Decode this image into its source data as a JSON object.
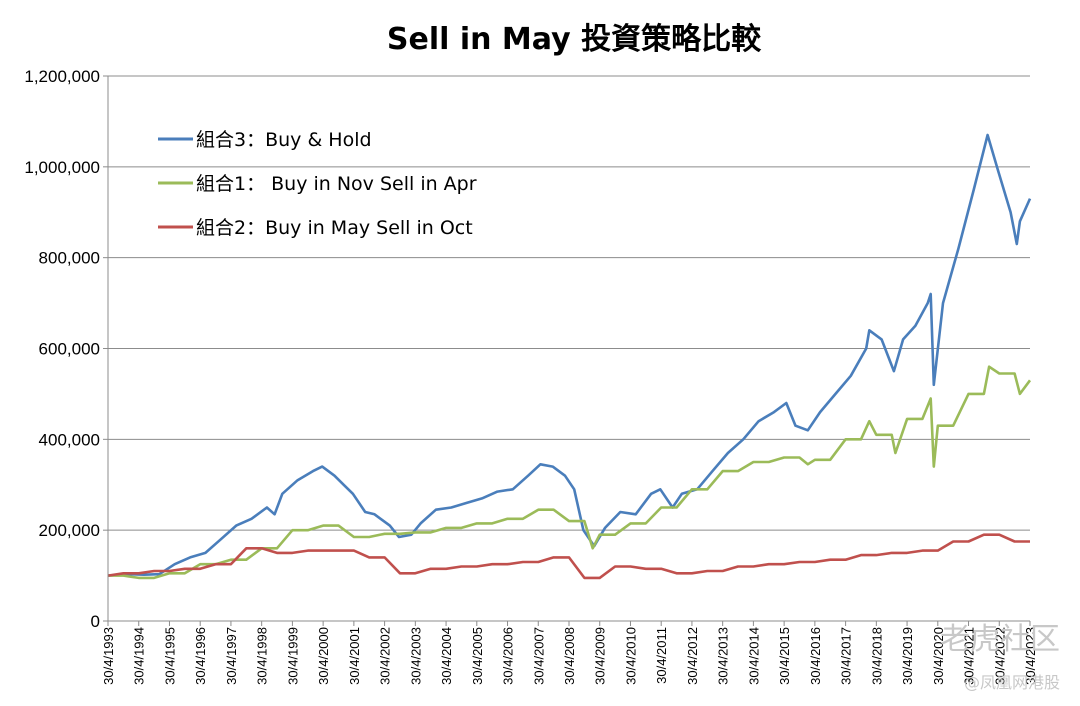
{
  "chart_data": {
    "type": "line",
    "title": "Sell in May 投資策略比較",
    "xlabel": "",
    "ylabel": "",
    "ylim": [
      0,
      1200000
    ],
    "yticks": [
      "0",
      "200,000",
      "400,000",
      "600,000",
      "800,000",
      "1,000,000",
      "1,200,000"
    ],
    "xticks": [
      "30/4/1993",
      "30/4/1994",
      "30/4/1995",
      "30/4/1996",
      "30/4/1997",
      "30/4/1998",
      "30/4/1999",
      "30/4/2000",
      "30/4/2001",
      "30/4/2002",
      "30/4/2003",
      "30/4/2004",
      "30/4/2005",
      "30/4/2006",
      "30/4/2007",
      "30/4/2008",
      "30/4/2009",
      "30/4/2010",
      "30/4/2011",
      "30/4/2012",
      "30/4/2013",
      "30/4/2014",
      "30/4/2015",
      "30/4/2016",
      "30/4/2017",
      "30/4/2018",
      "30/4/2019",
      "30/4/2020",
      "30/4/2021",
      "30/4/2022",
      "30/4/2023"
    ],
    "x_range": [
      1993.33,
      2023.33
    ],
    "grid": true,
    "legend_position": "top-left",
    "series": [
      {
        "name": "組合3：Buy & Hold",
        "color": "#4a7ebb",
        "points": [
          [
            1993.33,
            100000
          ],
          [
            1994.0,
            103000
          ],
          [
            1994.5,
            102000
          ],
          [
            1995.0,
            103000
          ],
          [
            1995.5,
            125000
          ],
          [
            1996.0,
            140000
          ],
          [
            1996.5,
            150000
          ],
          [
            1997.0,
            180000
          ],
          [
            1997.5,
            210000
          ],
          [
            1998.0,
            225000
          ],
          [
            1998.5,
            250000
          ],
          [
            1998.75,
            235000
          ],
          [
            1999.0,
            280000
          ],
          [
            1999.5,
            310000
          ],
          [
            2000.0,
            330000
          ],
          [
            2000.3,
            340000
          ],
          [
            2000.7,
            320000
          ],
          [
            2001.0,
            300000
          ],
          [
            2001.3,
            280000
          ],
          [
            2001.7,
            240000
          ],
          [
            2002.0,
            235000
          ],
          [
            2002.5,
            210000
          ],
          [
            2002.8,
            185000
          ],
          [
            2003.2,
            190000
          ],
          [
            2003.5,
            215000
          ],
          [
            2004.0,
            245000
          ],
          [
            2004.5,
            250000
          ],
          [
            2005.0,
            260000
          ],
          [
            2005.5,
            270000
          ],
          [
            2006.0,
            285000
          ],
          [
            2006.5,
            290000
          ],
          [
            2007.0,
            320000
          ],
          [
            2007.4,
            345000
          ],
          [
            2007.8,
            340000
          ],
          [
            2008.2,
            320000
          ],
          [
            2008.5,
            290000
          ],
          [
            2008.8,
            200000
          ],
          [
            2009.15,
            165000
          ],
          [
            2009.5,
            205000
          ],
          [
            2010.0,
            240000
          ],
          [
            2010.5,
            235000
          ],
          [
            2011.0,
            280000
          ],
          [
            2011.3,
            290000
          ],
          [
            2011.7,
            250000
          ],
          [
            2012.0,
            280000
          ],
          [
            2012.5,
            290000
          ],
          [
            2013.0,
            330000
          ],
          [
            2013.5,
            370000
          ],
          [
            2014.0,
            400000
          ],
          [
            2014.5,
            440000
          ],
          [
            2015.0,
            460000
          ],
          [
            2015.4,
            480000
          ],
          [
            2015.7,
            430000
          ],
          [
            2016.1,
            420000
          ],
          [
            2016.5,
            460000
          ],
          [
            2017.0,
            500000
          ],
          [
            2017.5,
            540000
          ],
          [
            2018.0,
            600000
          ],
          [
            2018.1,
            640000
          ],
          [
            2018.5,
            620000
          ],
          [
            2018.9,
            550000
          ],
          [
            2019.2,
            620000
          ],
          [
            2019.6,
            650000
          ],
          [
            2020.0,
            700000
          ],
          [
            2020.1,
            720000
          ],
          [
            2020.2,
            520000
          ],
          [
            2020.5,
            700000
          ],
          [
            2021.0,
            820000
          ],
          [
            2021.5,
            950000
          ],
          [
            2021.95,
            1070000
          ],
          [
            2022.3,
            990000
          ],
          [
            2022.7,
            900000
          ],
          [
            2022.9,
            830000
          ],
          [
            2023.0,
            880000
          ],
          [
            2023.33,
            930000
          ]
        ]
      },
      {
        "name": "組合1： Buy in Nov Sell in Apr",
        "color": "#9bbb59",
        "points": [
          [
            1993.33,
            100000
          ],
          [
            1993.83,
            100000
          ],
          [
            1994.33,
            95000
          ],
          [
            1994.83,
            95000
          ],
          [
            1995.33,
            105000
          ],
          [
            1995.83,
            105000
          ],
          [
            1996.33,
            125000
          ],
          [
            1996.83,
            125000
          ],
          [
            1997.33,
            135000
          ],
          [
            1997.83,
            135000
          ],
          [
            1998.33,
            160000
          ],
          [
            1998.83,
            160000
          ],
          [
            1999.33,
            200000
          ],
          [
            1999.83,
            200000
          ],
          [
            2000.33,
            210000
          ],
          [
            2000.83,
            210000
          ],
          [
            2001.33,
            185000
          ],
          [
            2001.83,
            185000
          ],
          [
            2002.33,
            192000
          ],
          [
            2002.83,
            192000
          ],
          [
            2003.33,
            195000
          ],
          [
            2003.83,
            195000
          ],
          [
            2004.33,
            205000
          ],
          [
            2004.83,
            205000
          ],
          [
            2005.33,
            215000
          ],
          [
            2005.83,
            215000
          ],
          [
            2006.33,
            225000
          ],
          [
            2006.83,
            225000
          ],
          [
            2007.33,
            245000
          ],
          [
            2007.83,
            245000
          ],
          [
            2008.33,
            220000
          ],
          [
            2008.83,
            220000
          ],
          [
            2009.1,
            160000
          ],
          [
            2009.33,
            190000
          ],
          [
            2009.83,
            190000
          ],
          [
            2010.33,
            215000
          ],
          [
            2010.83,
            215000
          ],
          [
            2011.33,
            250000
          ],
          [
            2011.83,
            250000
          ],
          [
            2012.33,
            290000
          ],
          [
            2012.83,
            290000
          ],
          [
            2013.33,
            330000
          ],
          [
            2013.83,
            330000
          ],
          [
            2014.33,
            350000
          ],
          [
            2014.83,
            350000
          ],
          [
            2015.33,
            360000
          ],
          [
            2015.83,
            360000
          ],
          [
            2016.1,
            345000
          ],
          [
            2016.33,
            355000
          ],
          [
            2016.83,
            355000
          ],
          [
            2017.33,
            400000
          ],
          [
            2017.83,
            400000
          ],
          [
            2018.1,
            440000
          ],
          [
            2018.33,
            410000
          ],
          [
            2018.83,
            410000
          ],
          [
            2018.95,
            370000
          ],
          [
            2019.33,
            445000
          ],
          [
            2019.83,
            445000
          ],
          [
            2020.1,
            490000
          ],
          [
            2020.2,
            340000
          ],
          [
            2020.33,
            430000
          ],
          [
            2020.83,
            430000
          ],
          [
            2021.33,
            500000
          ],
          [
            2021.83,
            500000
          ],
          [
            2022.0,
            560000
          ],
          [
            2022.33,
            545000
          ],
          [
            2022.83,
            545000
          ],
          [
            2023.0,
            500000
          ],
          [
            2023.33,
            530000
          ]
        ]
      },
      {
        "name": "組合2：Buy in May Sell in Oct",
        "color": "#c0504d",
        "points": [
          [
            1993.33,
            100000
          ],
          [
            1993.83,
            105000
          ],
          [
            1994.33,
            105000
          ],
          [
            1994.83,
            110000
          ],
          [
            1995.33,
            110000
          ],
          [
            1995.83,
            115000
          ],
          [
            1996.33,
            115000
          ],
          [
            1996.83,
            125000
          ],
          [
            1997.33,
            125000
          ],
          [
            1997.83,
            160000
          ],
          [
            1998.33,
            160000
          ],
          [
            1998.83,
            150000
          ],
          [
            1999.33,
            150000
          ],
          [
            1999.83,
            155000
          ],
          [
            2000.33,
            155000
          ],
          [
            2000.83,
            155000
          ],
          [
            2001.33,
            155000
          ],
          [
            2001.83,
            140000
          ],
          [
            2002.33,
            140000
          ],
          [
            2002.83,
            105000
          ],
          [
            2003.33,
            105000
          ],
          [
            2003.83,
            115000
          ],
          [
            2004.33,
            115000
          ],
          [
            2004.83,
            120000
          ],
          [
            2005.33,
            120000
          ],
          [
            2005.83,
            125000
          ],
          [
            2006.33,
            125000
          ],
          [
            2006.83,
            130000
          ],
          [
            2007.33,
            130000
          ],
          [
            2007.83,
            140000
          ],
          [
            2008.33,
            140000
          ],
          [
            2008.83,
            95000
          ],
          [
            2009.33,
            95000
          ],
          [
            2009.83,
            120000
          ],
          [
            2010.33,
            120000
          ],
          [
            2010.83,
            115000
          ],
          [
            2011.33,
            115000
          ],
          [
            2011.83,
            105000
          ],
          [
            2012.33,
            105000
          ],
          [
            2012.83,
            110000
          ],
          [
            2013.33,
            110000
          ],
          [
            2013.83,
            120000
          ],
          [
            2014.33,
            120000
          ],
          [
            2014.83,
            125000
          ],
          [
            2015.33,
            125000
          ],
          [
            2015.83,
            130000
          ],
          [
            2016.33,
            130000
          ],
          [
            2016.83,
            135000
          ],
          [
            2017.33,
            135000
          ],
          [
            2017.83,
            145000
          ],
          [
            2018.33,
            145000
          ],
          [
            2018.83,
            150000
          ],
          [
            2019.33,
            150000
          ],
          [
            2019.83,
            155000
          ],
          [
            2020.33,
            155000
          ],
          [
            2020.83,
            175000
          ],
          [
            2021.33,
            175000
          ],
          [
            2021.83,
            190000
          ],
          [
            2022.33,
            190000
          ],
          [
            2022.83,
            175000
          ],
          [
            2023.33,
            175000
          ]
        ]
      }
    ]
  },
  "watermark": {
    "text1": "老虎社区",
    "text2": "@凤凰网港股"
  }
}
